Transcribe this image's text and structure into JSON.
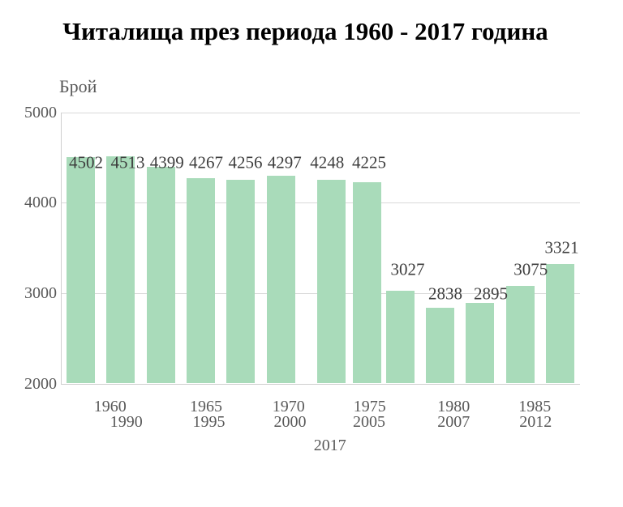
{
  "chart_data": {
    "type": "bar",
    "title": "Читалища през периода 1960 - 2017 година",
    "ylabel": "Брой",
    "xlabel": "",
    "categories": [
      "1960",
      "1965",
      "1970",
      "1975",
      "1980",
      "1985",
      "1990",
      "1995",
      "2000",
      "2005",
      "2007",
      "2012",
      "2017"
    ],
    "values": [
      4502,
      4513,
      4399,
      4267,
      4256,
      4297,
      4248,
      4225,
      3027,
      2838,
      2895,
      3075,
      3321
    ],
    "value_labels_shown": true,
    "ylim": [
      2000,
      5000
    ],
    "yticks": [
      5000,
      4000,
      3000,
      2000
    ],
    "x_tick_rows": [
      [
        "1960",
        "1965",
        "1970",
        "1975",
        "1980",
        "1985"
      ],
      [
        "1990",
        "1995",
        "2000",
        "2005",
        "2007",
        "2012"
      ],
      [
        "2017"
      ]
    ],
    "grid": true,
    "legend_position": "none",
    "colors": {
      "bar": "#a9dbba",
      "gridline": "#d9d9d9",
      "axis": "#cfcfcf",
      "tick_label": "#595959",
      "value_label": "#3d3d3d",
      "title": "#000000",
      "background": "#ffffff"
    }
  }
}
